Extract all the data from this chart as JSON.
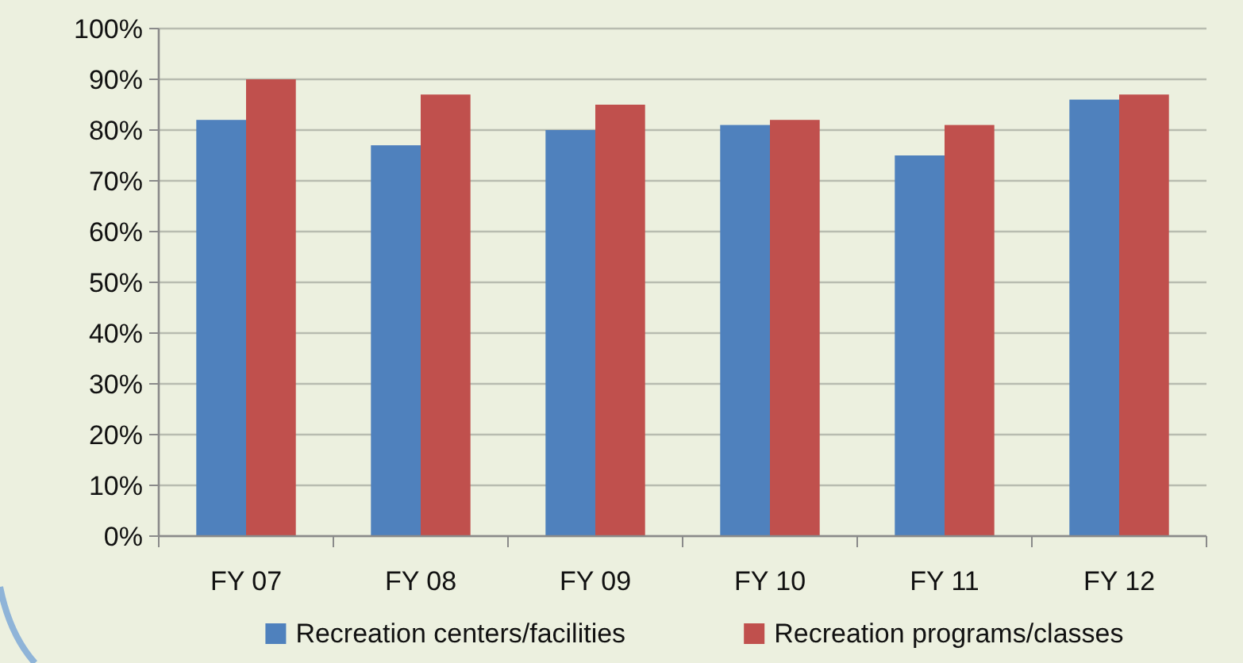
{
  "chart_data": {
    "type": "bar",
    "categories": [
      "FY 07",
      "FY 08",
      "FY 09",
      "FY 10",
      "FY 11",
      "FY 12"
    ],
    "series": [
      {
        "name": "Recreation centers/facilities",
        "color": "#4f81bd",
        "values": [
          82,
          77,
          80,
          81,
          75,
          86
        ]
      },
      {
        "name": "Recreation programs/classes",
        "color": "#c0504d",
        "values": [
          90,
          87,
          85,
          82,
          81,
          87
        ]
      }
    ],
    "ylim": [
      0,
      100
    ],
    "yticks": [
      {
        "value": 0,
        "label": "0%"
      },
      {
        "value": 10,
        "label": "10%"
      },
      {
        "value": 20,
        "label": "20%"
      },
      {
        "value": 30,
        "label": "30%"
      },
      {
        "value": 40,
        "label": "40%"
      },
      {
        "value": 50,
        "label": "50%"
      },
      {
        "value": 60,
        "label": "60%"
      },
      {
        "value": 70,
        "label": "70%"
      },
      {
        "value": 80,
        "label": "80%"
      },
      {
        "value": 90,
        "label": "90%"
      },
      {
        "value": 100,
        "label": "100%"
      }
    ],
    "grid": "y",
    "legend": "bottom"
  }
}
